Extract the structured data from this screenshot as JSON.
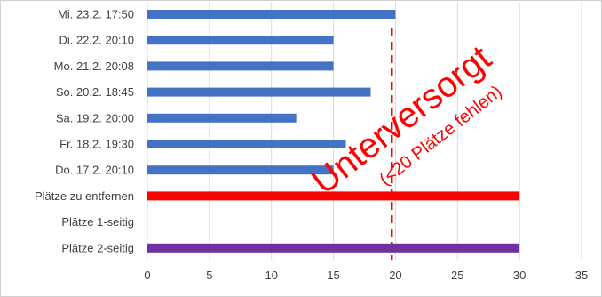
{
  "chart_data": {
    "type": "bar",
    "orientation": "horizontal",
    "categories": [
      "Mi. 23.2. 17:50",
      "Di. 22.2. 20:10",
      "Mo. 21.2. 20:08",
      "So. 20.2. 18:45",
      "Sa. 19.2. 20:00",
      "Fr. 18.2. 19:30",
      "Do. 17.2. 20:10",
      "Plätze zu entfernen",
      "Plätze 1-seitig",
      "Plätze 2-seitig"
    ],
    "values": [
      20,
      15,
      15,
      18,
      12,
      16,
      15,
      30,
      0,
      30
    ],
    "bar_colors": [
      "#4472c4",
      "#4472c4",
      "#4472c4",
      "#4472c4",
      "#4472c4",
      "#4472c4",
      "#4472c4",
      "#ff0000",
      "#ff0000",
      "#7030a0"
    ],
    "xlim": [
      0,
      35
    ],
    "xticks": [
      0,
      5,
      10,
      15,
      20,
      25,
      30,
      35
    ],
    "grid": "vertical",
    "reference_line": {
      "x": 19.7,
      "color": "#e01010",
      "style": "dashed"
    },
    "annotation": {
      "main": "Unterversorgt",
      "sub": "(<20 Plätze fehlen)",
      "color": "#ff0000"
    }
  }
}
